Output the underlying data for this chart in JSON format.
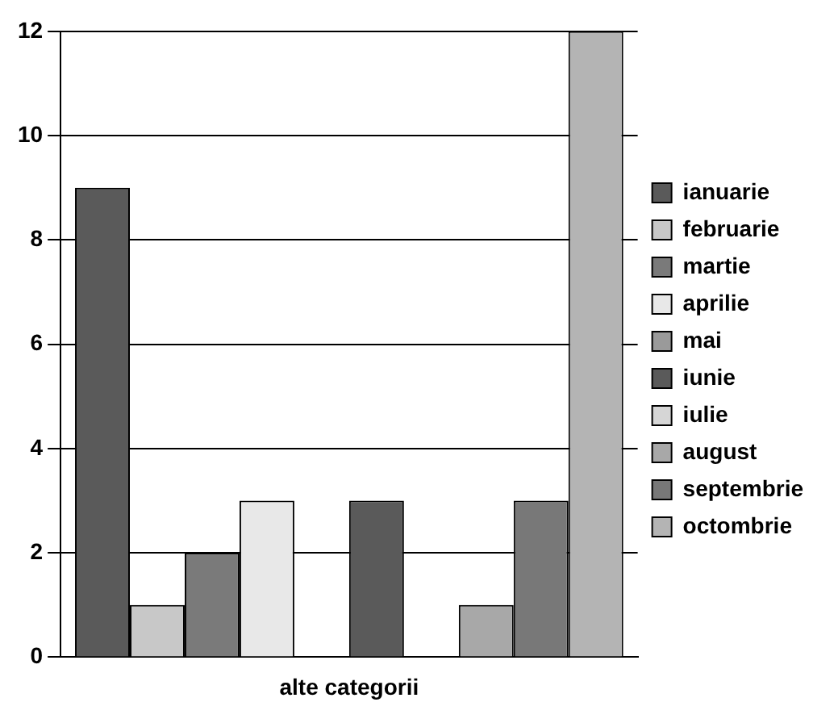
{
  "chart_data": {
    "type": "bar",
    "categories": [
      "alte categorii"
    ],
    "series": [
      {
        "name": "ianuarie",
        "color": "#5a5a5a",
        "values": [
          9
        ]
      },
      {
        "name": "februarie",
        "color": "#c8c8c8",
        "values": [
          1
        ]
      },
      {
        "name": "martie",
        "color": "#7a7a7a",
        "values": [
          2
        ]
      },
      {
        "name": "aprilie",
        "color": "#e8e8e8",
        "values": [
          3
        ]
      },
      {
        "name": "mai",
        "color": "#9a9a9a",
        "values": [
          0
        ]
      },
      {
        "name": "iunie",
        "color": "#5a5a5a",
        "values": [
          3
        ]
      },
      {
        "name": "iulie",
        "color": "#d6d6d6",
        "values": [
          0
        ]
      },
      {
        "name": "august",
        "color": "#a8a8a8",
        "values": [
          1
        ]
      },
      {
        "name": "septembrie",
        "color": "#787878",
        "values": [
          3
        ]
      },
      {
        "name": "octombrie",
        "color": "#b4b4b4",
        "values": [
          12
        ]
      }
    ],
    "ylim": [
      0,
      12
    ],
    "yticks": [
      0,
      2,
      4,
      6,
      8,
      10,
      12
    ],
    "grid": "y",
    "legend": "right"
  }
}
